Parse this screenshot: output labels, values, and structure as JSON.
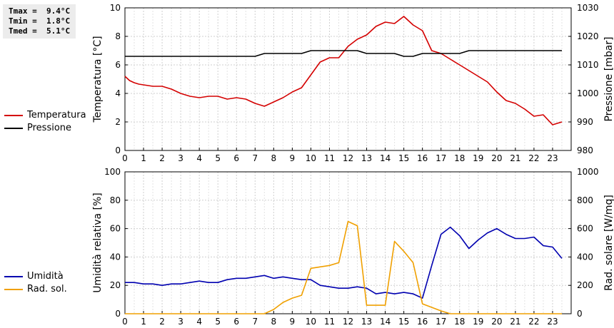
{
  "stats": {
    "rows": [
      "Tmax =  9.4°C",
      "Tmin =  1.8°C",
      "Tmed =  5.1°C"
    ]
  },
  "legend_top": [
    {
      "label": "Temperatura",
      "color": "#d40000"
    },
    {
      "label": "Pressione",
      "color": "#000000"
    }
  ],
  "legend_bottom": [
    {
      "label": "Umidità",
      "color": "#0000b0"
    },
    {
      "label": "Rad. sol.",
      "color": "#f0a000"
    }
  ],
  "chart_data": [
    {
      "type": "line",
      "xlabel": "",
      "xlim": [
        0,
        24
      ],
      "xticks": [
        "0",
        "1",
        "2",
        "3",
        "4",
        "5",
        "6",
        "7",
        "8",
        "9",
        "10",
        "11",
        "12",
        "13",
        "14",
        "15",
        "16",
        "17",
        "18",
        "19",
        "20",
        "21",
        "22",
        "23"
      ],
      "ylabel": "Temperatura [°C]",
      "ylim": [
        0,
        10
      ],
      "yticks": [
        "0",
        "2",
        "4",
        "6",
        "8",
        "10"
      ],
      "y2label": "Pressione [mbar]",
      "y2lim": [
        980,
        1030
      ],
      "y2ticks": [
        "980",
        "990",
        "1000",
        "1010",
        "1020",
        "1030"
      ],
      "grid": true,
      "series": [
        {
          "name": "Temperatura",
          "color": "#d40000",
          "axis": "left",
          "x": [
            0,
            0.25,
            0.5,
            0.75,
            1,
            1.5,
            2,
            2.5,
            3,
            3.5,
            4,
            4.5,
            5,
            5.5,
            6,
            6.5,
            7,
            7.5,
            8,
            8.5,
            9,
            9.5,
            10,
            10.5,
            11,
            11.5,
            12,
            12.5,
            13,
            13.5,
            14,
            14.5,
            15,
            15.5,
            16,
            16.5,
            17,
            17.5,
            18,
            18.5,
            19,
            19.5,
            20,
            20.5,
            21,
            21.5,
            22,
            22.5,
            23,
            23.5
          ],
          "y": [
            5.2,
            4.9,
            4.75,
            4.65,
            4.6,
            4.5,
            4.5,
            4.3,
            4.0,
            3.8,
            3.7,
            3.8,
            3.8,
            3.6,
            3.7,
            3.6,
            3.3,
            3.1,
            3.4,
            3.7,
            4.1,
            4.4,
            5.3,
            6.2,
            6.5,
            6.5,
            7.3,
            7.8,
            8.1,
            8.7,
            9.0,
            8.9,
            9.4,
            8.8,
            8.4,
            7.0,
            6.8,
            6.4,
            6.0,
            5.6,
            5.2,
            4.8,
            4.1,
            3.5,
            3.3,
            2.9,
            2.4,
            2.5,
            1.8,
            2.0
          ]
        },
        {
          "name": "Pressione",
          "color": "#000000",
          "axis": "right",
          "x": [
            0,
            7,
            7.5,
            9.5,
            10,
            12.5,
            13,
            14.5,
            15,
            15.5,
            16,
            18,
            18.5,
            23.5
          ],
          "y": [
            1013,
            1013,
            1014,
            1014,
            1015,
            1015,
            1014,
            1014,
            1013,
            1013,
            1014,
            1014,
            1015,
            1015
          ]
        }
      ]
    },
    {
      "type": "line",
      "xlabel": "",
      "xlim": [
        0,
        24
      ],
      "xticks": [
        "0",
        "1",
        "2",
        "3",
        "4",
        "5",
        "6",
        "7",
        "8",
        "9",
        "10",
        "11",
        "12",
        "13",
        "14",
        "15",
        "16",
        "17",
        "18",
        "19",
        "20",
        "21",
        "22",
        "23"
      ],
      "ylabel": "Umidità relativa [%]",
      "ylim": [
        0,
        100
      ],
      "yticks": [
        "0",
        "20",
        "40",
        "60",
        "80",
        "100"
      ],
      "y2label": "Rad. solare [W/mq]",
      "y2lim": [
        0,
        1000
      ],
      "y2ticks": [
        "0",
        "200",
        "400",
        "600",
        "800",
        "1000"
      ],
      "grid": true,
      "series": [
        {
          "name": "Umidità",
          "color": "#0000b0",
          "axis": "left",
          "x": [
            0,
            0.5,
            1,
            1.5,
            2,
            2.5,
            3,
            3.5,
            4,
            4.5,
            5,
            5.5,
            6,
            6.5,
            7,
            7.5,
            8,
            8.5,
            9,
            9.5,
            10,
            10.5,
            11,
            11.5,
            12,
            12.5,
            13,
            13.5,
            14,
            14.5,
            15,
            15.5,
            16,
            16.5,
            17,
            17.5,
            18,
            18.5,
            19,
            19.5,
            20,
            20.5,
            21,
            21.5,
            22,
            22.5,
            23,
            23.5
          ],
          "y": [
            22,
            22,
            21,
            21,
            20,
            21,
            21,
            22,
            23,
            22,
            22,
            24,
            25,
            25,
            26,
            27,
            25,
            26,
            25,
            24,
            24,
            20,
            19,
            18,
            18,
            19,
            18,
            14,
            15,
            14,
            15,
            14,
            11,
            34,
            56,
            61,
            55,
            46,
            52,
            57,
            60,
            56,
            53,
            53,
            54,
            48,
            47,
            39
          ]
        },
        {
          "name": "Rad. sol.",
          "color": "#f0a000",
          "axis": "right",
          "x": [
            0,
            7.5,
            8,
            8.5,
            9,
            9.5,
            10,
            10.5,
            11,
            11.5,
            12,
            12.5,
            13,
            13.5,
            14,
            14.5,
            15,
            15.5,
            16,
            17,
            17.5,
            18,
            23.5
          ],
          "y": [
            0,
            0,
            30,
            80,
            110,
            130,
            320,
            330,
            340,
            360,
            650,
            620,
            60,
            60,
            60,
            510,
            440,
            360,
            70,
            20,
            0,
            0,
            0
          ]
        }
      ]
    }
  ]
}
